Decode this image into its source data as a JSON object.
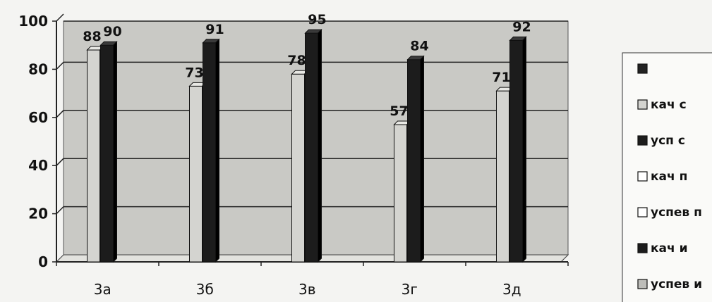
{
  "chart_data": {
    "type": "bar",
    "categories": [
      "3а",
      "3б",
      "3в",
      "3г",
      "3д"
    ],
    "ylim": [
      0,
      100
    ],
    "yticks": [
      "0",
      "20",
      "40",
      "60",
      "80",
      "100"
    ],
    "grid": true,
    "legend_position": "right",
    "series": [
      {
        "name": "",
        "values": [
          null,
          null,
          null,
          null,
          null
        ],
        "color": "#222222"
      },
      {
        "name": "кач с",
        "values": [
          88,
          73,
          78,
          57,
          71
        ],
        "color": "#d4d4d0"
      },
      {
        "name": "усп с",
        "values": [
          90,
          91,
          95,
          84,
          92
        ],
        "color": "#1c1c1c"
      },
      {
        "name": "кач п",
        "values": [
          null,
          null,
          null,
          null,
          null
        ],
        "color": "#ffffff"
      },
      {
        "name": "успев п",
        "values": [
          null,
          null,
          null,
          null,
          null
        ],
        "color": "#ffffff"
      },
      {
        "name": "кач и",
        "values": [
          null,
          null,
          null,
          null,
          null
        ],
        "color": "#1c1c1c"
      },
      {
        "name": "успев и",
        "values": [
          null,
          null,
          null,
          null,
          null
        ],
        "color": "#bdbdb9"
      }
    ],
    "data_labels": [
      [
        "88",
        "73",
        "78",
        "57",
        "71"
      ],
      [
        "90",
        "91",
        "95",
        "84",
        "92"
      ]
    ],
    "data_label_series": [
      1,
      2
    ]
  }
}
